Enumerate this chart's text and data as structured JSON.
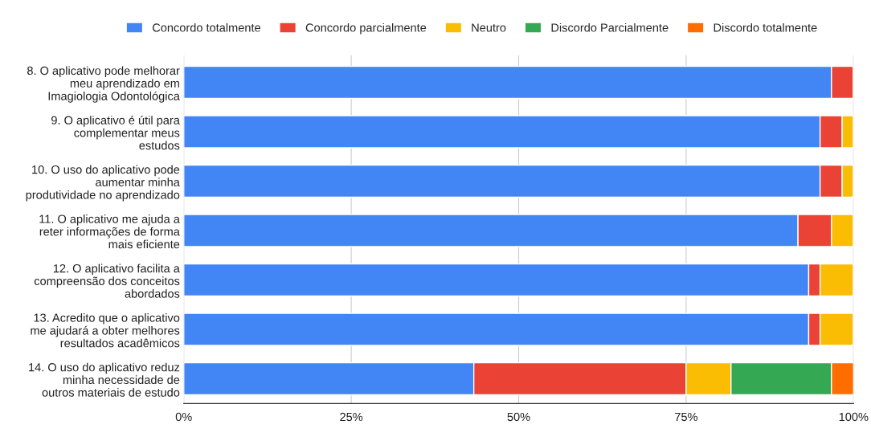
{
  "chart_data": {
    "type": "bar",
    "orientation": "horizontal",
    "stacked": true,
    "categories": [
      "8. O aplicativo pode melhorar\nmeu aprendizado em\nImagiologia Odontológica",
      "9. O aplicativo é útil para\ncomplementar meus\nestudos",
      "10. O uso do aplicativo pode\naumentar minha\nprodutividade no aprendizado",
      "11. O aplicativo me ajuda a\nreter informações de forma\nmais eficiente",
      "12. O aplicativo facilita a\ncompreensão dos conceitos\nabordados",
      "13. Acredito que o aplicativo\nme ajudará a obter melhores\nresultados acadêmicos",
      "14. O uso do aplicativo reduz\nminha necessidade de\noutros materiais de estudo"
    ],
    "series": [
      {
        "name": "Concordo totalmente",
        "color": "#4285f4",
        "values": [
          96.7,
          95.0,
          95.0,
          91.7,
          93.3,
          93.3,
          43.3
        ]
      },
      {
        "name": "Concordo parcialmente",
        "color": "#ea4335",
        "values": [
          3.3,
          3.3,
          3.3,
          5.0,
          1.7,
          1.7,
          31.7
        ]
      },
      {
        "name": "Neutro",
        "color": "#fbbc04",
        "values": [
          0,
          1.7,
          1.7,
          3.3,
          5.0,
          5.0,
          6.7
        ]
      },
      {
        "name": "Discordo Parcialmente",
        "color": "#34a853",
        "values": [
          0,
          0,
          0,
          0,
          0,
          0,
          15.0
        ]
      },
      {
        "name": "Discordo totalmente",
        "color": "#ff6d01",
        "values": [
          0,
          0,
          0,
          0,
          0,
          0,
          3.3
        ]
      }
    ],
    "xlim": [
      0,
      100
    ],
    "xticks": [
      {
        "value": 0,
        "label": "0%"
      },
      {
        "value": 25,
        "label": "25%"
      },
      {
        "value": 50,
        "label": "50%"
      },
      {
        "value": 75,
        "label": "75%"
      },
      {
        "value": 100,
        "label": "100%"
      }
    ],
    "grid": "x",
    "legend": "top"
  }
}
